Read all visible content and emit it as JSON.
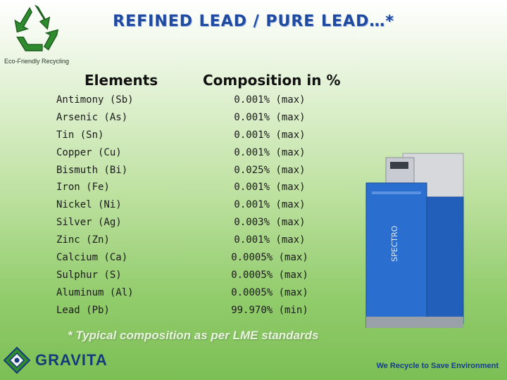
{
  "title": "REFINED LEAD / PURE LEAD…*",
  "eco_label": "Eco-Friendly Recycling",
  "table": {
    "headers": [
      "Elements",
      "Composition in %"
    ],
    "rows": [
      {
        "element": "Antimony (Sb)",
        "composition": "0.001% (max)"
      },
      {
        "element": "Arsenic (As)",
        "composition": "0.001% (max)"
      },
      {
        "element": "Tin (Sn)",
        "composition": "0.001% (max)"
      },
      {
        "element": "Copper  (Cu)",
        "composition": "0.001% (max)"
      },
      {
        "element": "Bismuth (Bi)",
        "composition": "0.025% (max)"
      },
      {
        "element": "Iron (Fe)",
        "composition": "0.001% (max)"
      },
      {
        "element": "Nickel (Ni)",
        "composition": "0.001% (max)"
      },
      {
        "element": "Silver (Ag)",
        "composition": "0.003% (max)"
      },
      {
        "element": "Zinc (Zn)",
        "composition": "0.001% (max)"
      },
      {
        "element": "Calcium (Ca)",
        "composition": "0.0005% (max)"
      },
      {
        "element": "Sulphur (S)",
        "composition": "0.0005% (max)"
      },
      {
        "element": "Aluminum (Al)",
        "composition": "0.0005% (max)"
      },
      {
        "element": "Lead (Pb)",
        "composition": "99.970% (min)"
      }
    ]
  },
  "machine_label": "SPECTRO",
  "footnote": "* Typical composition as per LME standards",
  "brand": "GRAVITA",
  "tagline": "We Recycle to Save Environment",
  "colors": {
    "title": "#1f4aa0",
    "recycle": "#2e8b2e",
    "machine_blue": "#2a6ed0",
    "brand": "#163a7a"
  },
  "icons": {
    "logo": "recycle-icon",
    "brand": "gravita-logo-icon"
  }
}
